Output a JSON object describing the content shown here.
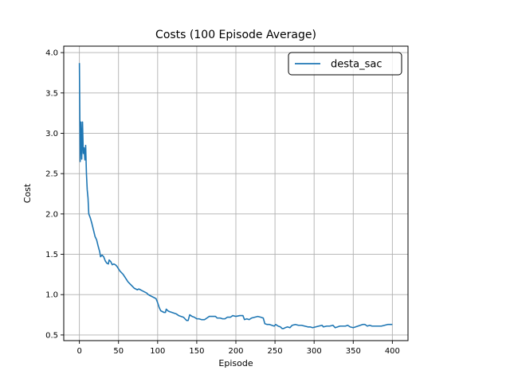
{
  "chart_data": {
    "type": "line",
    "title": "Costs (100 Episode Average)",
    "xlabel": "Episode",
    "ylabel": "Cost",
    "xlim": [
      -20,
      420
    ],
    "ylim": [
      0.43,
      4.08
    ],
    "xticks": [
      0,
      50,
      100,
      150,
      200,
      250,
      300,
      350,
      400
    ],
    "yticks": [
      0.5,
      1.0,
      1.5,
      2.0,
      2.5,
      3.0,
      3.5,
      4.0
    ],
    "xtick_labels": [
      "0",
      "50",
      "100",
      "150",
      "200",
      "250",
      "300",
      "350",
      "400"
    ],
    "ytick_labels": [
      "0.5",
      "1.0",
      "1.5",
      "2.0",
      "2.5",
      "3.0",
      "3.5",
      "4.0"
    ],
    "grid": true,
    "legend_position": "top-right",
    "series": [
      {
        "name": "desta_sac",
        "color": "#1f77b4",
        "points": [
          [
            0,
            3.87
          ],
          [
            1,
            2.65
          ],
          [
            2,
            3.14
          ],
          [
            3,
            2.68
          ],
          [
            4,
            3.14
          ],
          [
            5,
            2.75
          ],
          [
            6,
            2.82
          ],
          [
            7,
            2.67
          ],
          [
            8,
            2.85
          ],
          [
            9,
            2.5
          ],
          [
            10,
            2.3
          ],
          [
            11,
            2.2
          ],
          [
            12,
            2.0
          ],
          [
            14,
            1.95
          ],
          [
            16,
            1.88
          ],
          [
            18,
            1.8
          ],
          [
            20,
            1.72
          ],
          [
            22,
            1.68
          ],
          [
            24,
            1.6
          ],
          [
            26,
            1.53
          ],
          [
            27,
            1.47
          ],
          [
            29,
            1.49
          ],
          [
            31,
            1.47
          ],
          [
            33,
            1.42
          ],
          [
            35,
            1.39
          ],
          [
            37,
            1.38
          ],
          [
            38,
            1.43
          ],
          [
            40,
            1.41
          ],
          [
            42,
            1.37
          ],
          [
            44,
            1.38
          ],
          [
            46,
            1.37
          ],
          [
            48,
            1.35
          ],
          [
            50,
            1.32
          ],
          [
            52,
            1.29
          ],
          [
            54,
            1.27
          ],
          [
            56,
            1.25
          ],
          [
            58,
            1.22
          ],
          [
            60,
            1.19
          ],
          [
            62,
            1.16
          ],
          [
            64,
            1.14
          ],
          [
            66,
            1.12
          ],
          [
            68,
            1.1
          ],
          [
            70,
            1.08
          ],
          [
            72,
            1.07
          ],
          [
            74,
            1.06
          ],
          [
            76,
            1.07
          ],
          [
            78,
            1.06
          ],
          [
            80,
            1.05
          ],
          [
            82,
            1.04
          ],
          [
            84,
            1.03
          ],
          [
            86,
            1.02
          ],
          [
            88,
            1.0
          ],
          [
            90,
            0.99
          ],
          [
            92,
            0.98
          ],
          [
            94,
            0.97
          ],
          [
            96,
            0.96
          ],
          [
            98,
            0.95
          ],
          [
            100,
            0.9
          ],
          [
            102,
            0.84
          ],
          [
            104,
            0.8
          ],
          [
            106,
            0.79
          ],
          [
            108,
            0.78
          ],
          [
            110,
            0.78
          ],
          [
            111,
            0.82
          ],
          [
            113,
            0.8
          ],
          [
            115,
            0.79
          ],
          [
            118,
            0.78
          ],
          [
            121,
            0.77
          ],
          [
            124,
            0.76
          ],
          [
            127,
            0.74
          ],
          [
            130,
            0.73
          ],
          [
            133,
            0.72
          ],
          [
            135,
            0.7
          ],
          [
            137,
            0.68
          ],
          [
            139,
            0.68
          ],
          [
            141,
            0.75
          ],
          [
            144,
            0.73
          ],
          [
            147,
            0.72
          ],
          [
            150,
            0.7
          ],
          [
            153,
            0.7
          ],
          [
            156,
            0.69
          ],
          [
            160,
            0.69
          ],
          [
            163,
            0.71
          ],
          [
            166,
            0.73
          ],
          [
            170,
            0.73
          ],
          [
            174,
            0.73
          ],
          [
            176,
            0.71
          ],
          [
            180,
            0.71
          ],
          [
            183,
            0.7
          ],
          [
            186,
            0.7
          ],
          [
            189,
            0.72
          ],
          [
            193,
            0.72
          ],
          [
            196,
            0.74
          ],
          [
            200,
            0.73
          ],
          [
            205,
            0.74
          ],
          [
            209,
            0.74
          ],
          [
            211,
            0.69
          ],
          [
            214,
            0.7
          ],
          [
            217,
            0.69
          ],
          [
            220,
            0.71
          ],
          [
            224,
            0.72
          ],
          [
            228,
            0.73
          ],
          [
            232,
            0.72
          ],
          [
            235,
            0.71
          ],
          [
            237,
            0.64
          ],
          [
            240,
            0.63
          ],
          [
            243,
            0.63
          ],
          [
            246,
            0.62
          ],
          [
            249,
            0.61
          ],
          [
            251,
            0.63
          ],
          [
            254,
            0.61
          ],
          [
            257,
            0.6
          ],
          [
            259,
            0.58
          ],
          [
            261,
            0.58
          ],
          [
            263,
            0.59
          ],
          [
            266,
            0.6
          ],
          [
            269,
            0.59
          ],
          [
            272,
            0.62
          ],
          [
            276,
            0.63
          ],
          [
            280,
            0.62
          ],
          [
            284,
            0.62
          ],
          [
            288,
            0.61
          ],
          [
            292,
            0.6
          ],
          [
            295,
            0.6
          ],
          [
            298,
            0.59
          ],
          [
            302,
            0.6
          ],
          [
            306,
            0.61
          ],
          [
            310,
            0.62
          ],
          [
            312,
            0.6
          ],
          [
            316,
            0.61
          ],
          [
            320,
            0.61
          ],
          [
            324,
            0.62
          ],
          [
            327,
            0.59
          ],
          [
            330,
            0.6
          ],
          [
            333,
            0.61
          ],
          [
            336,
            0.61
          ],
          [
            340,
            0.61
          ],
          [
            343,
            0.62
          ],
          [
            346,
            0.6
          ],
          [
            350,
            0.59
          ],
          [
            353,
            0.6
          ],
          [
            356,
            0.61
          ],
          [
            359,
            0.62
          ],
          [
            362,
            0.63
          ],
          [
            365,
            0.63
          ],
          [
            368,
            0.61
          ],
          [
            371,
            0.62
          ],
          [
            374,
            0.61
          ],
          [
            378,
            0.61
          ],
          [
            382,
            0.61
          ],
          [
            386,
            0.61
          ],
          [
            390,
            0.62
          ],
          [
            394,
            0.63
          ],
          [
            398,
            0.63
          ],
          [
            400,
            0.63
          ]
        ]
      }
    ]
  }
}
